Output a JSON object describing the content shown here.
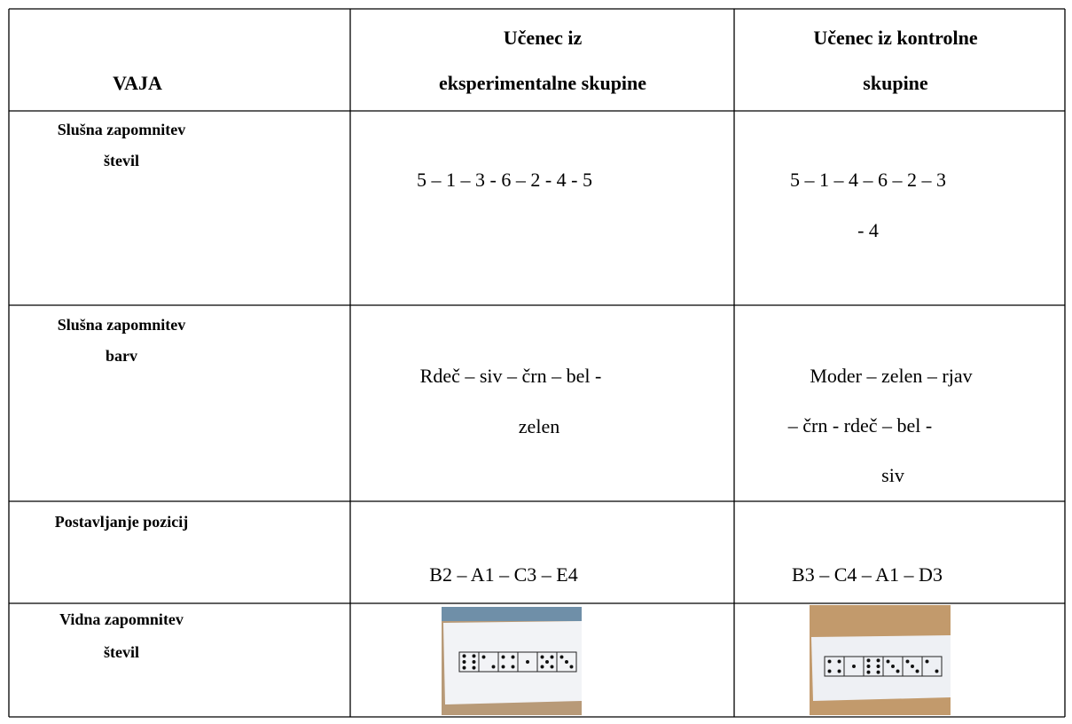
{
  "table": {
    "header": [
      [
        "VAJA"
      ],
      [
        "Učenec iz",
        "eksperimentalne skupine"
      ],
      [
        "Učenec iz kontrolne",
        "skupine"
      ]
    ],
    "rows": [
      [
        [
          "Slušna zapomnitev",
          "števil"
        ],
        [
          "5 – 1 – 3 - 6 – 2 - 4 - 5"
        ],
        [
          "5 – 1 – 4 – 6 – 2 – 3",
          "- 4"
        ]
      ],
      [
        [
          "Slušna zapomnitev",
          "barv"
        ],
        [
          "Rdeč – siv – črn – bel -",
          "zelen"
        ],
        [
          "Moder – zelen – rjav",
          "– črn - rdeč – bel -",
          "siv"
        ]
      ],
      [
        [
          "Postavljanje pozicij"
        ],
        [
          "B2 – A1 – C3 – E4"
        ],
        [
          "B3 – C4 – A1 – D3"
        ]
      ],
      [
        [
          "Vidna zapomnitev",
          "števil"
        ]
      ]
    ]
  }
}
